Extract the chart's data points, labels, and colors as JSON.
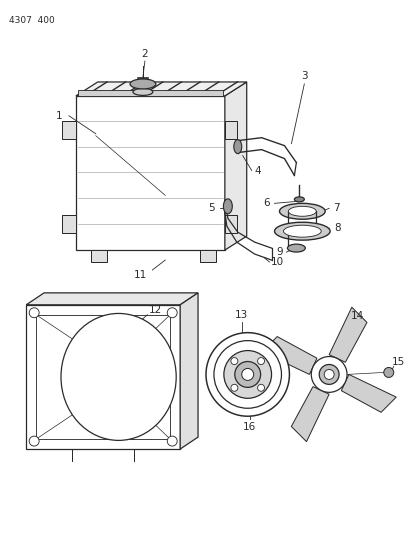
{
  "title": "4307  400",
  "bg_color": "#ffffff",
  "line_color": "#2a2a2a",
  "fig_width": 4.1,
  "fig_height": 5.33,
  "dpi": 100
}
